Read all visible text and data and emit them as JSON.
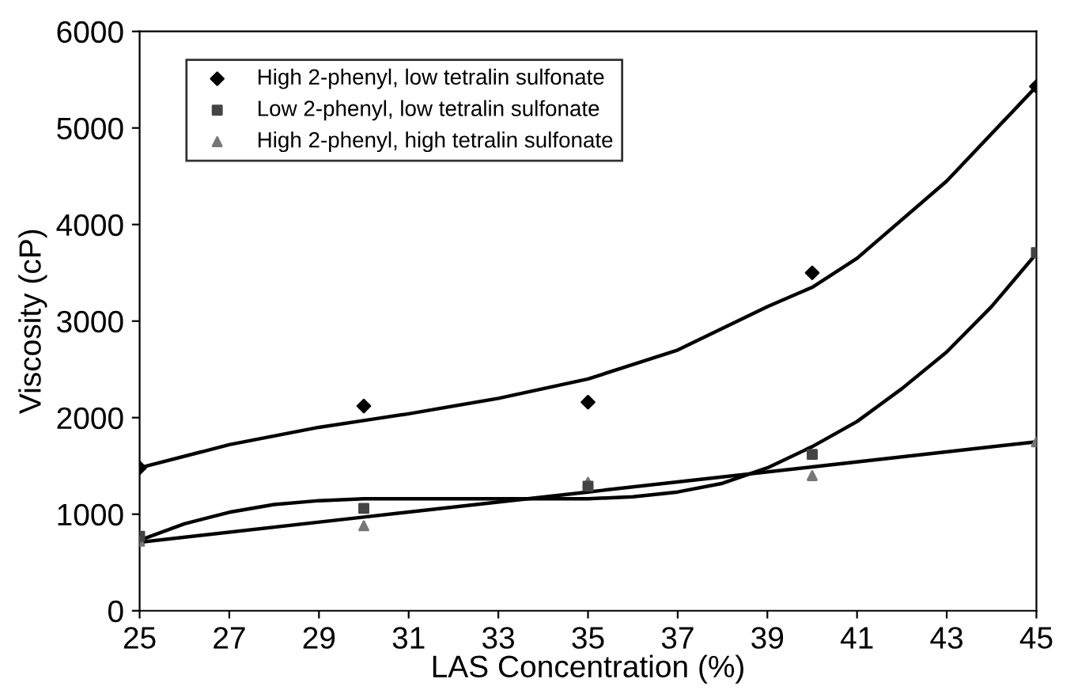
{
  "chart_data": {
    "type": "scatter",
    "xlabel": "LAS Concentration (%)",
    "ylabel": "Viscosity (cP)",
    "xlim": [
      25,
      45
    ],
    "ylim": [
      0,
      6000
    ],
    "xticks": [
      25,
      27,
      29,
      31,
      33,
      35,
      37,
      39,
      41,
      43,
      45
    ],
    "yticks": [
      0,
      1000,
      2000,
      3000,
      4000,
      5000,
      6000
    ],
    "grid": false,
    "legend": "top left",
    "series": [
      {
        "name": "High 2-phenyl, low tetralin sulfonate",
        "color": "#000000",
        "marker": "diamond",
        "x": [
          25,
          30,
          35,
          40,
          45
        ],
        "values": [
          1480,
          2120,
          2160,
          3500,
          5430
        ]
      },
      {
        "name": "Low 2-phenyl, low tetralin sulfonate",
        "color": "#444444",
        "marker": "square",
        "x": [
          25,
          30,
          35,
          40,
          45
        ],
        "values": [
          770,
          1060,
          1290,
          1620,
          3710
        ]
      },
      {
        "name": "High 2-phenyl, high tetralin sulfonate",
        "color": "#777777",
        "marker": "triangle",
        "x": [
          25,
          30,
          35,
          40,
          45
        ],
        "values": [
          720,
          880,
          1330,
          1400,
          1750
        ]
      },
      {
        "type": "line",
        "color": "#000000",
        "marker": "none",
        "x": [
          25,
          27,
          29,
          30,
          31,
          33,
          35,
          37,
          39,
          40,
          41,
          43,
          45
        ],
        "values": [
          1480,
          1720,
          1900,
          1970,
          2040,
          2200,
          2400,
          2700,
          3150,
          3350,
          3650,
          4450,
          5430
        ]
      },
      {
        "type": "line",
        "color": "#000000",
        "marker": "none",
        "x": [
          25,
          26,
          27,
          28,
          29,
          30,
          31,
          33,
          35,
          36,
          37,
          38,
          39,
          40,
          41,
          42,
          43,
          44,
          45
        ],
        "values": [
          730,
          900,
          1020,
          1100,
          1140,
          1160,
          1160,
          1160,
          1160,
          1180,
          1230,
          1320,
          1480,
          1700,
          1960,
          2300,
          2680,
          3150,
          3700
        ]
      },
      {
        "type": "line",
        "color": "#000000",
        "marker": "none",
        "x": [
          25,
          30,
          35,
          40,
          45
        ],
        "values": [
          710,
          970,
          1230,
          1490,
          1750
        ]
      }
    ]
  }
}
